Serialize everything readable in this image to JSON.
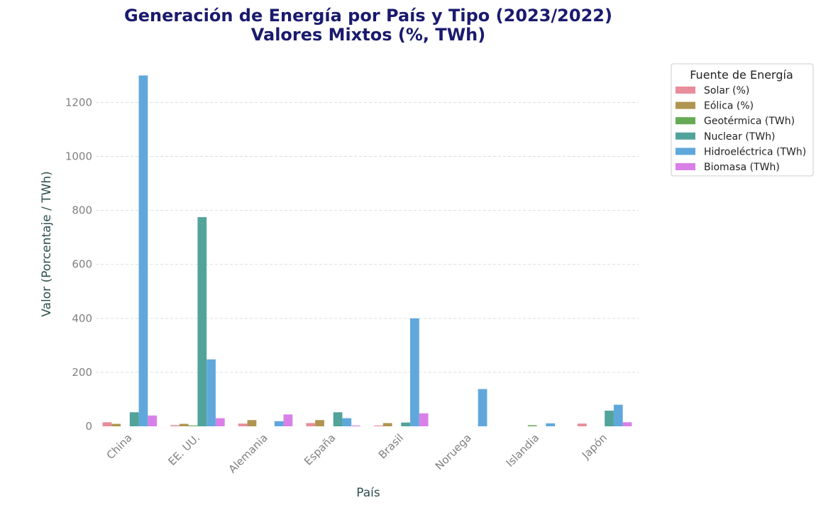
{
  "chart_data": {
    "type": "bar",
    "title": "Generación de Energía por País y Tipo (2023/2022)",
    "subtitle": "Valores Mixtos (%, TWh)",
    "xlabel": "País",
    "ylabel": "Valor (Porcentaje / TWh)",
    "categories": [
      "China",
      "EE. UU.",
      "Alemania",
      "España",
      "Brasil",
      "Noruega",
      "Islandia",
      "Japón"
    ],
    "ylim": [
      0,
      1330
    ],
    "yticks": [
      0,
      200,
      400,
      600,
      800,
      1000,
      1200
    ],
    "grid": true,
    "legend": {
      "title": "Fuente de Energía",
      "position": "right"
    },
    "series": [
      {
        "name": "Solar (%)",
        "color": "#e88d9b",
        "values": [
          15,
          4,
          10,
          12,
          3,
          0,
          0,
          10
        ]
      },
      {
        "name": "Eólica (%)",
        "color": "#b09450",
        "values": [
          9,
          9,
          23,
          23,
          12,
          0,
          0,
          0
        ]
      },
      {
        "name": "Geotérmica (TWh)",
        "color": "#66aa55",
        "values": [
          0,
          3,
          0,
          0,
          0,
          0,
          4,
          0
        ]
      },
      {
        "name": "Nuclear (TWh)",
        "color": "#52a39a",
        "values": [
          52,
          775,
          0,
          52,
          14,
          0,
          0,
          58
        ]
      },
      {
        "name": "Hidroeléctrica (TWh)",
        "color": "#60a8dc",
        "values": [
          1300,
          248,
          19,
          30,
          400,
          138,
          11,
          80
        ]
      },
      {
        "name": "Biomasa (TWh)",
        "color": "#d880e8",
        "values": [
          40,
          30,
          44,
          3,
          48,
          0,
          0,
          15
        ]
      }
    ]
  }
}
